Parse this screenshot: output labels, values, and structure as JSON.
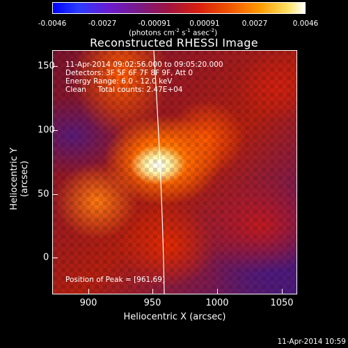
{
  "colorbar": {
    "ticks": [
      "-0.0046",
      "-0.0027",
      "-0.00091",
      "0.00091",
      "0.0027",
      "0.0046"
    ],
    "unit_label": "(photons cm",
    "unit_exp1": "-2",
    "unit_mid": " s",
    "unit_exp2": "-1",
    "unit_mid2": " asec",
    "unit_exp3": "-2",
    "unit_close": ")"
  },
  "plot": {
    "title": "Reconstructed RHESSI Image",
    "info_time": "11-Apr-2014 09:02:56.000 to 09:05:20.000",
    "info_detectors": "Detectors: 3F 5F 6F 7F 8F 9F, Att 0",
    "info_energy": "Energy Range: 6.0 - 12.0 keV",
    "info_clean": "Clean     Total counts: 2.47E+04",
    "peak_label": "Position of Peak = [961,69]",
    "xlabel": "Heliocentric X (arcsec)",
    "ylabel": "Heliocentric Y (arcsec)",
    "x_ticks": [
      "900",
      "950",
      "1000",
      "1050"
    ],
    "y_ticks": [
      "150",
      "100",
      "50",
      "0"
    ]
  },
  "timestamp": "11-Apr-2014 10:59"
}
